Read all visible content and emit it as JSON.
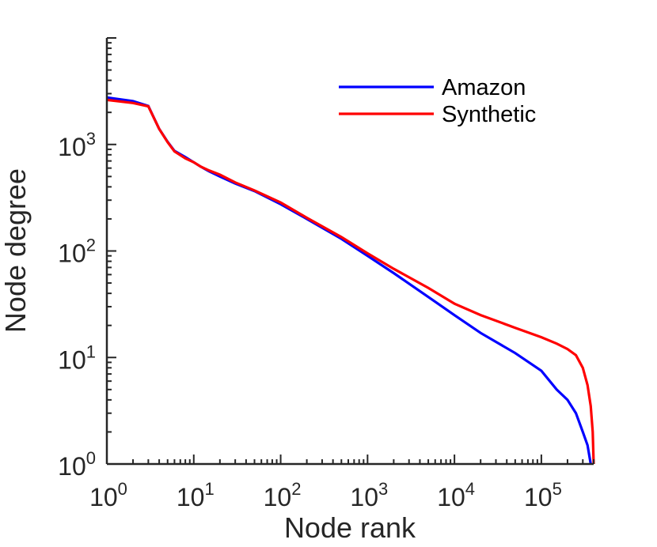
{
  "chart_data": {
    "type": "line",
    "xscale": "log",
    "yscale": "log",
    "xlabel": "Node rank",
    "ylabel": "Node degree",
    "xlim": [
      1,
      400000
    ],
    "ylim": [
      1,
      10000
    ],
    "x_ticks": [
      {
        "value": 1,
        "base": "10",
        "exp": "0"
      },
      {
        "value": 10,
        "base": "10",
        "exp": "1"
      },
      {
        "value": 100,
        "base": "10",
        "exp": "2"
      },
      {
        "value": 1000,
        "base": "10",
        "exp": "3"
      },
      {
        "value": 10000,
        "base": "10",
        "exp": "4"
      },
      {
        "value": 100000,
        "base": "10",
        "exp": "5"
      }
    ],
    "y_ticks": [
      {
        "value": 1,
        "base": "10",
        "exp": "0"
      },
      {
        "value": 10,
        "base": "10",
        "exp": "1"
      },
      {
        "value": 100,
        "base": "10",
        "exp": "2"
      },
      {
        "value": 1000,
        "base": "10",
        "exp": "3"
      }
    ],
    "legend_position": "top-right",
    "grid": false,
    "series": [
      {
        "name": "Amazon",
        "color": "#0000ff",
        "points": [
          [
            1,
            2760
          ],
          [
            2,
            2550
          ],
          [
            3,
            2300
          ],
          [
            4,
            1400
          ],
          [
            5,
            1060
          ],
          [
            6,
            870
          ],
          [
            8,
            760
          ],
          [
            10,
            680
          ],
          [
            12,
            620
          ],
          [
            15,
            560
          ],
          [
            20,
            500
          ],
          [
            30,
            430
          ],
          [
            50,
            365
          ],
          [
            100,
            275
          ],
          [
            200,
            200
          ],
          [
            500,
            130
          ],
          [
            1000,
            90
          ],
          [
            2000,
            62
          ],
          [
            5000,
            37
          ],
          [
            10000,
            25
          ],
          [
            20000,
            17
          ],
          [
            50000,
            11
          ],
          [
            100000,
            7.5
          ],
          [
            150000,
            5
          ],
          [
            200000,
            4
          ],
          [
            250000,
            3
          ],
          [
            300000,
            2
          ],
          [
            340000,
            1.5
          ],
          [
            370000,
            1
          ]
        ]
      },
      {
        "name": "Synthetic",
        "color": "#ff0000",
        "points": [
          [
            1,
            2620
          ],
          [
            2,
            2450
          ],
          [
            3,
            2280
          ],
          [
            4,
            1400
          ],
          [
            5,
            1050
          ],
          [
            6,
            860
          ],
          [
            8,
            740
          ],
          [
            10,
            680
          ],
          [
            12,
            620
          ],
          [
            15,
            570
          ],
          [
            20,
            520
          ],
          [
            30,
            440
          ],
          [
            50,
            370
          ],
          [
            100,
            285
          ],
          [
            200,
            205
          ],
          [
            500,
            135
          ],
          [
            1000,
            95
          ],
          [
            2000,
            68
          ],
          [
            5000,
            45
          ],
          [
            10000,
            32
          ],
          [
            20000,
            25
          ],
          [
            50000,
            19
          ],
          [
            100000,
            15.5
          ],
          [
            150000,
            13.5
          ],
          [
            200000,
            12
          ],
          [
            250000,
            10.5
          ],
          [
            300000,
            8
          ],
          [
            340000,
            5.5
          ],
          [
            370000,
            3.5
          ],
          [
            390000,
            2
          ],
          [
            400000,
            1
          ]
        ]
      }
    ]
  }
}
